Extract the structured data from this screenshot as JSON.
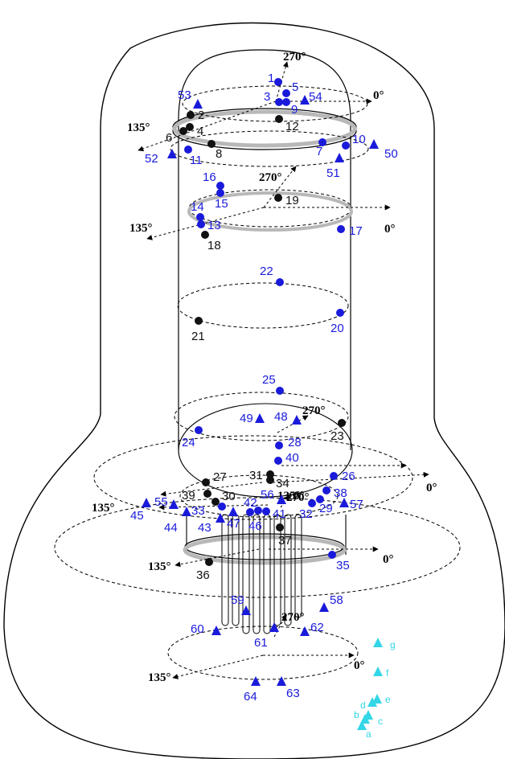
{
  "colors": {
    "blue": "#1a1adb",
    "black": "#111111",
    "cyan": "#33d6e6",
    "outline": "#000000",
    "band": "#b8b8b8"
  },
  "angle_labels": [
    "270°",
    "0°",
    "135°",
    "270°",
    "135°",
    "0°",
    "270°",
    "0°",
    "135°",
    "270°",
    "0°",
    "135°",
    "0°",
    "135°",
    "270°",
    "0°",
    "135°"
  ],
  "sensors": [
    {
      "id": "1",
      "shape": "circle",
      "color": "blue"
    },
    {
      "id": "2",
      "shape": "circle",
      "color": "black"
    },
    {
      "id": "3",
      "shape": "circle",
      "color": "blue"
    },
    {
      "id": "4",
      "shape": "circle",
      "color": "black"
    },
    {
      "id": "5",
      "shape": "circle",
      "color": "blue"
    },
    {
      "id": "6",
      "shape": "circle",
      "color": "black"
    },
    {
      "id": "7",
      "shape": "circle",
      "color": "blue"
    },
    {
      "id": "8",
      "shape": "circle",
      "color": "black"
    },
    {
      "id": "9",
      "shape": "circle",
      "color": "blue"
    },
    {
      "id": "10",
      "shape": "circle",
      "color": "blue"
    },
    {
      "id": "11",
      "shape": "circle",
      "color": "blue"
    },
    {
      "id": "12",
      "shape": "circle",
      "color": "black"
    },
    {
      "id": "13",
      "shape": "circle",
      "color": "blue"
    },
    {
      "id": "14",
      "shape": "circle",
      "color": "blue"
    },
    {
      "id": "15",
      "shape": "circle",
      "color": "blue"
    },
    {
      "id": "16",
      "shape": "circle",
      "color": "blue"
    },
    {
      "id": "17",
      "shape": "circle",
      "color": "blue"
    },
    {
      "id": "18",
      "shape": "circle",
      "color": "black"
    },
    {
      "id": "19",
      "shape": "circle",
      "color": "black"
    },
    {
      "id": "20",
      "shape": "circle",
      "color": "blue"
    },
    {
      "id": "21",
      "shape": "circle",
      "color": "black"
    },
    {
      "id": "22",
      "shape": "circle",
      "color": "blue"
    },
    {
      "id": "23",
      "shape": "circle",
      "color": "black"
    },
    {
      "id": "24",
      "shape": "circle",
      "color": "blue"
    },
    {
      "id": "25",
      "shape": "circle",
      "color": "blue"
    },
    {
      "id": "26",
      "shape": "circle",
      "color": "blue"
    },
    {
      "id": "27",
      "shape": "circle",
      "color": "black"
    },
    {
      "id": "28",
      "shape": "circle",
      "color": "blue"
    },
    {
      "id": "29",
      "shape": "circle",
      "color": "blue"
    },
    {
      "id": "30",
      "shape": "circle",
      "color": "black"
    },
    {
      "id": "31",
      "shape": "circle",
      "color": "black"
    },
    {
      "id": "32",
      "shape": "circle",
      "color": "blue"
    },
    {
      "id": "33",
      "shape": "triangle",
      "color": "blue"
    },
    {
      "id": "34",
      "shape": "circle",
      "color": "black"
    },
    {
      "id": "35",
      "shape": "circle",
      "color": "blue"
    },
    {
      "id": "36",
      "shape": "circle",
      "color": "black"
    },
    {
      "id": "37",
      "shape": "circle",
      "color": "black"
    },
    {
      "id": "38",
      "shape": "circle",
      "color": "blue"
    },
    {
      "id": "39",
      "shape": "circle",
      "color": "black"
    },
    {
      "id": "40",
      "shape": "circle",
      "color": "blue"
    },
    {
      "id": "41",
      "shape": "circle",
      "color": "blue"
    },
    {
      "id": "42",
      "shape": "circle",
      "color": "blue"
    },
    {
      "id": "43",
      "shape": "triangle",
      "color": "blue"
    },
    {
      "id": "44",
      "shape": "circle",
      "color": "blue"
    },
    {
      "id": "45",
      "shape": "triangle",
      "color": "blue"
    },
    {
      "id": "46",
      "shape": "circle",
      "color": "blue"
    },
    {
      "id": "47",
      "shape": "triangle",
      "color": "blue"
    },
    {
      "id": "48",
      "shape": "triangle",
      "color": "blue"
    },
    {
      "id": "49",
      "shape": "triangle",
      "color": "blue"
    },
    {
      "id": "50",
      "shape": "triangle",
      "color": "blue"
    },
    {
      "id": "51",
      "shape": "triangle",
      "color": "blue"
    },
    {
      "id": "52",
      "shape": "triangle",
      "color": "blue"
    },
    {
      "id": "53",
      "shape": "triangle",
      "color": "blue"
    },
    {
      "id": "54",
      "shape": "triangle",
      "color": "blue"
    },
    {
      "id": "55",
      "shape": "triangle",
      "color": "blue"
    },
    {
      "id": "56",
      "shape": "triangle",
      "color": "blue"
    },
    {
      "id": "57",
      "shape": "triangle",
      "color": "blue"
    },
    {
      "id": "58",
      "shape": "triangle",
      "color": "blue"
    },
    {
      "id": "59",
      "shape": "triangle",
      "color": "blue"
    },
    {
      "id": "60",
      "shape": "triangle",
      "color": "blue"
    },
    {
      "id": "61",
      "shape": "triangle",
      "color": "blue"
    },
    {
      "id": "62",
      "shape": "triangle",
      "color": "blue"
    },
    {
      "id": "63",
      "shape": "triangle",
      "color": "blue"
    },
    {
      "id": "64",
      "shape": "triangle",
      "color": "blue"
    }
  ],
  "legend_markers": [
    {
      "id": "a",
      "shape": "triangle",
      "color": "cyan"
    },
    {
      "id": "b",
      "shape": "triangle",
      "color": "cyan"
    },
    {
      "id": "c",
      "shape": "triangle",
      "color": "cyan"
    },
    {
      "id": "d",
      "shape": "triangle",
      "color": "cyan"
    },
    {
      "id": "e",
      "shape": "triangle",
      "color": "cyan"
    },
    {
      "id": "f",
      "shape": "triangle",
      "color": "cyan"
    },
    {
      "id": "g",
      "shape": "triangle",
      "color": "cyan"
    }
  ]
}
